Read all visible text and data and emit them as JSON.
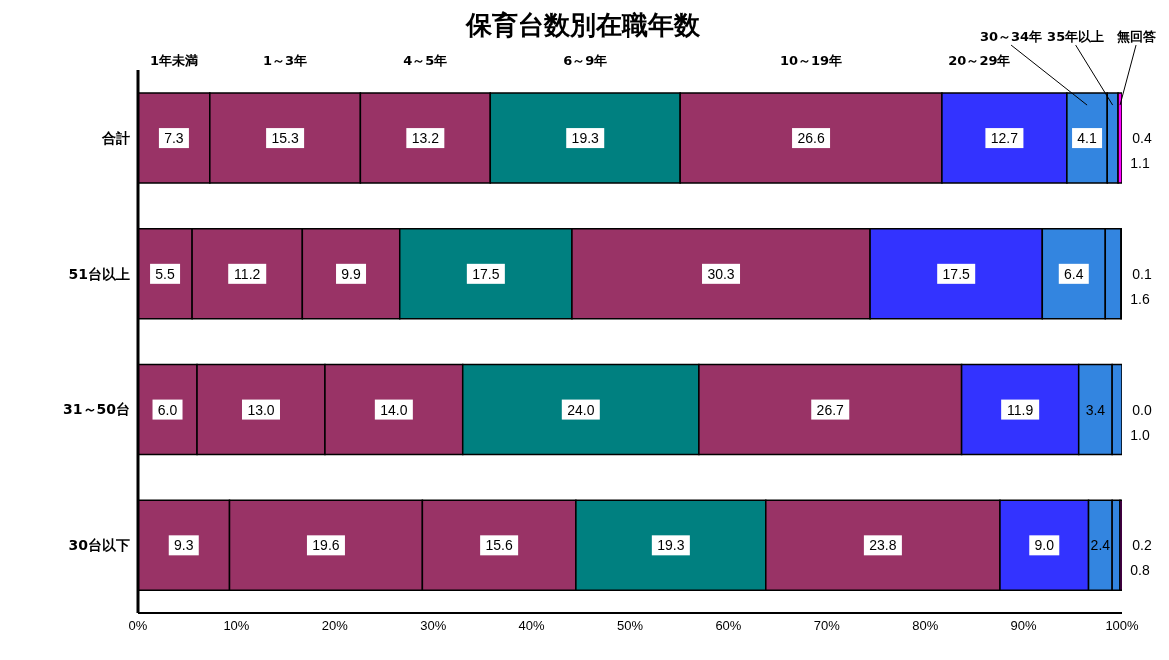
{
  "chart_data": {
    "type": "bar",
    "orientation": "horizontal",
    "stacked": true,
    "title": "保育台数別在職年数",
    "categories": [
      "合計",
      "51台以上",
      "31～50台",
      "30台以下"
    ],
    "series": [
      {
        "name": "1年未満",
        "color": "#993366",
        "values": [
          7.3,
          5.5,
          6.0,
          9.3
        ],
        "value_labels": [
          "7.3",
          "5.5",
          "6.0",
          "9.3"
        ]
      },
      {
        "name": "1～3年",
        "color": "#993366",
        "values": [
          15.3,
          11.2,
          13.0,
          19.6
        ],
        "value_labels": [
          "15.3",
          "11.2",
          "13.0",
          "19.6"
        ]
      },
      {
        "name": "4～5年",
        "color": "#993366",
        "values": [
          13.2,
          9.9,
          14.0,
          15.6
        ],
        "value_labels": [
          "13.2",
          "9.9",
          "14.0",
          "15.6"
        ]
      },
      {
        "name": "6～9年",
        "color": "#008080",
        "values": [
          19.3,
          17.5,
          24.0,
          19.3
        ],
        "value_labels": [
          "19.3",
          "17.5",
          "24.0",
          "19.3"
        ]
      },
      {
        "name": "10～19年",
        "color": "#993366",
        "values": [
          26.6,
          30.3,
          26.7,
          23.8
        ],
        "value_labels": [
          "26.6",
          "30.3",
          "26.7",
          "23.8"
        ]
      },
      {
        "name": "20～29年",
        "color": "#3333ff",
        "values": [
          12.7,
          17.5,
          11.9,
          9.0
        ],
        "value_labels": [
          "12.7",
          "17.5",
          "11.9",
          "9.0"
        ]
      },
      {
        "name": "30～34年",
        "color": "#3385e0",
        "values": [
          4.1,
          6.4,
          3.4,
          2.4
        ],
        "value_labels": [
          "4.1",
          "6.4",
          "3.4",
          "2.4"
        ]
      },
      {
        "name": "35年以上",
        "color": "#3385e0",
        "values": [
          1.1,
          1.6,
          1.0,
          0.8
        ],
        "value_labels": [
          "1.1",
          "1.6",
          "1.0",
          "0.8"
        ]
      },
      {
        "name": "無回答",
        "color": "#ff00ff",
        "values": [
          0.4,
          0.1,
          0.0,
          0.2
        ],
        "value_labels": [
          "0.4",
          "0.1",
          "0.0",
          "0.2"
        ]
      }
    ],
    "xlim": [
      0,
      100
    ],
    "xticks": [
      {
        "value": 0,
        "label": "0%"
      },
      {
        "value": 10,
        "label": "10%"
      },
      {
        "value": 20,
        "label": "20%"
      },
      {
        "value": 30,
        "label": "30%"
      },
      {
        "value": 40,
        "label": "40%"
      },
      {
        "value": 50,
        "label": "50%"
      },
      {
        "value": 60,
        "label": "60%"
      },
      {
        "value": 70,
        "label": "70%"
      },
      {
        "value": 80,
        "label": "80%"
      },
      {
        "value": 90,
        "label": "90%"
      },
      {
        "value": 100,
        "label": "100%"
      }
    ],
    "grid": false
  }
}
